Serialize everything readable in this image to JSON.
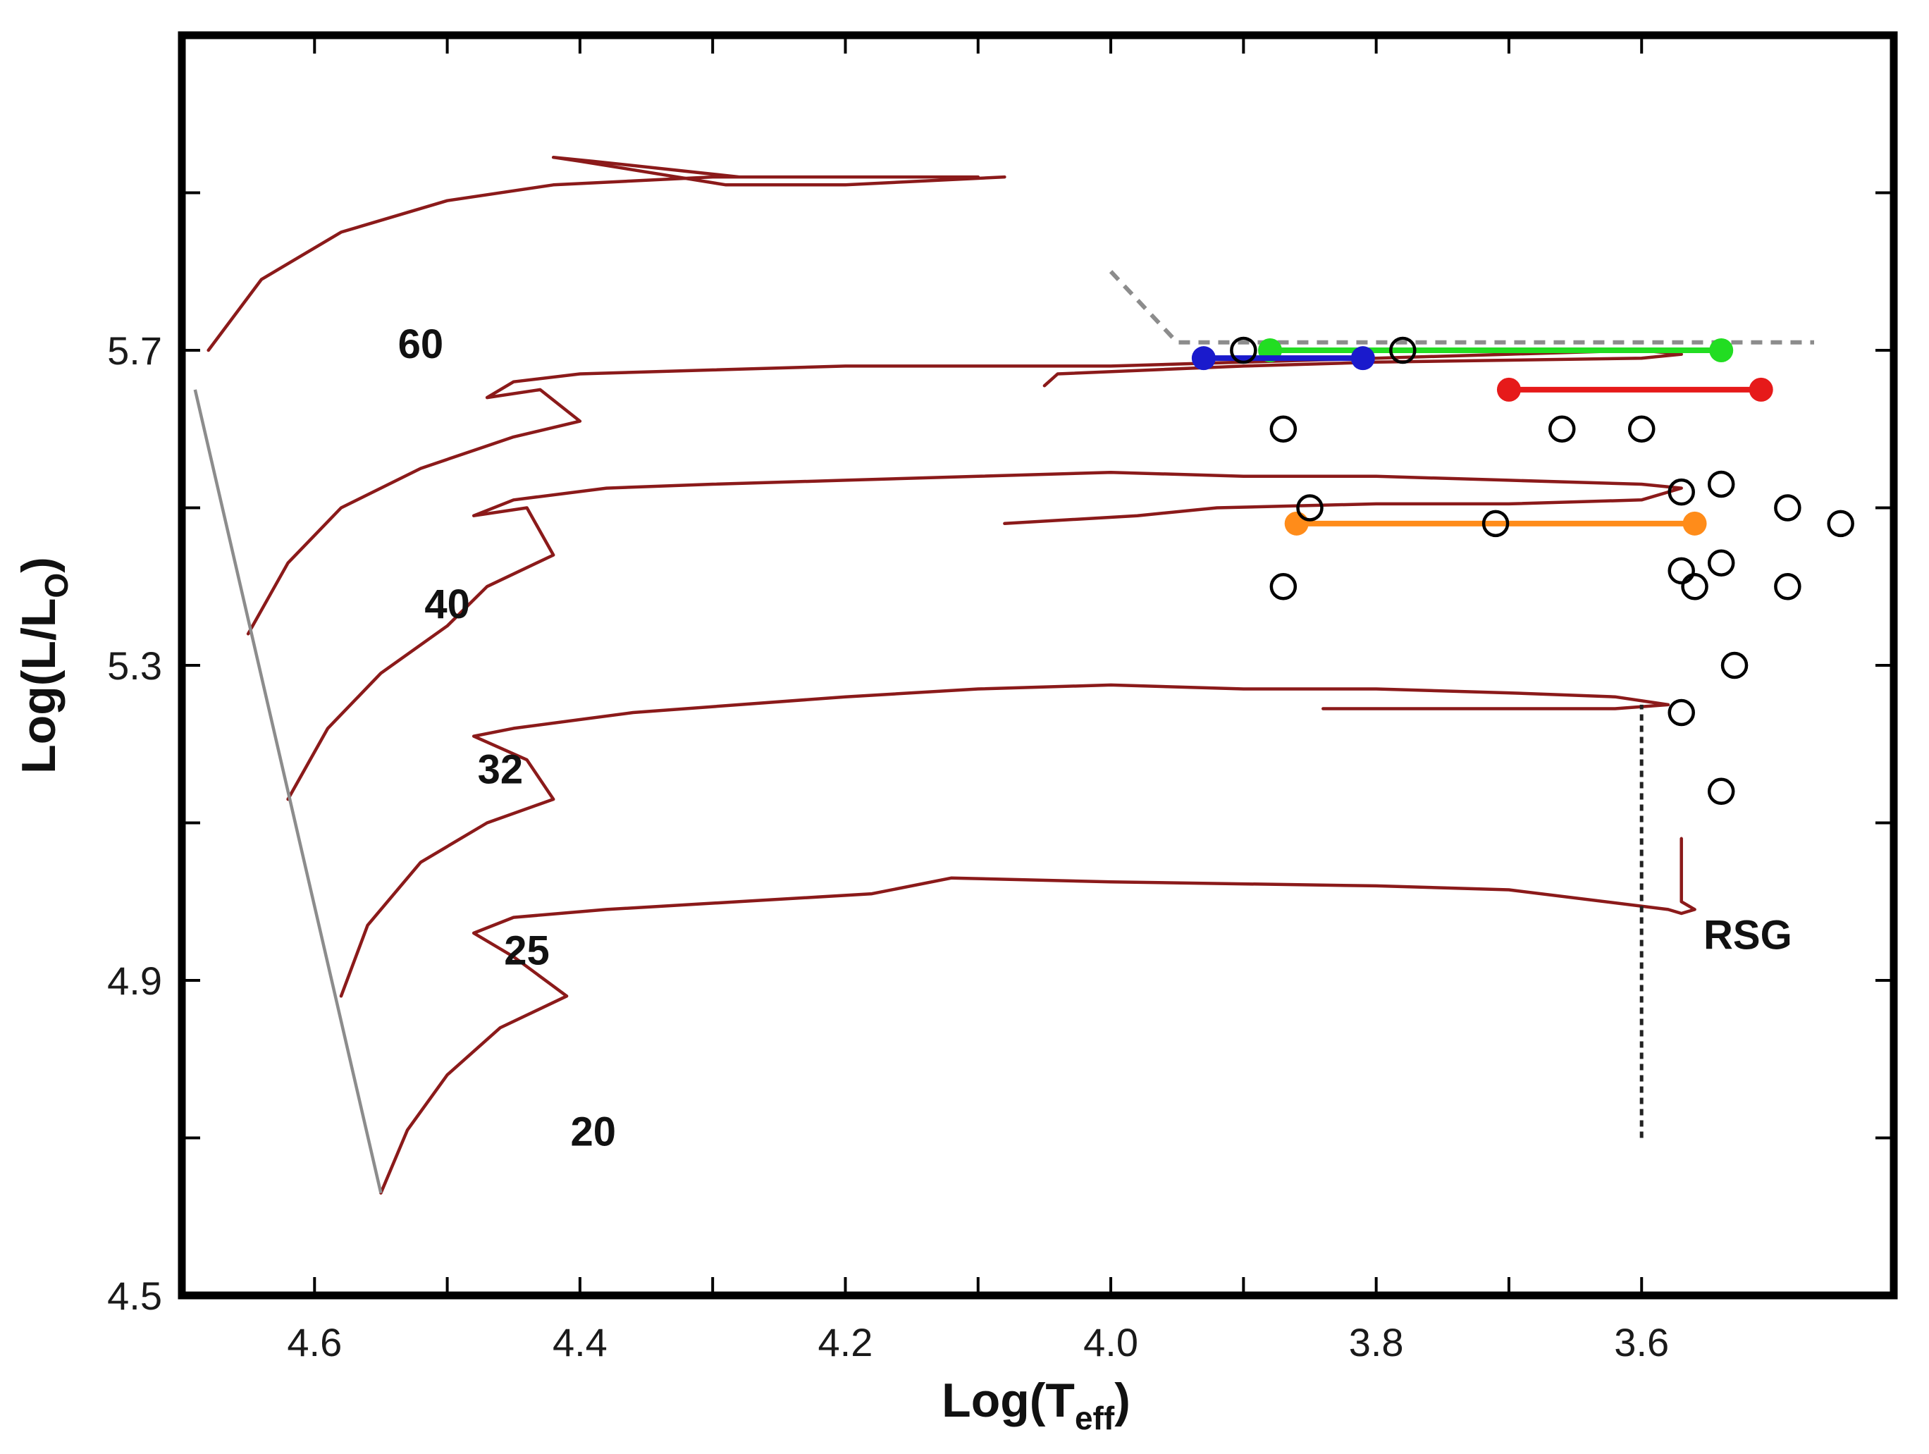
{
  "chart_data": {
    "type": "line",
    "title": "",
    "xlabel": {
      "main": "Log(T",
      "sub": "eff",
      "close": ")"
    },
    "ylabel": {
      "main": "Log(L/L",
      "sub": "O",
      "close": ")"
    },
    "xlim": [
      4.7,
      3.41
    ],
    "ylim": [
      4.5,
      6.1
    ],
    "x_inverted": true,
    "x_ticks": [
      4.6,
      4.4,
      4.2,
      4.0,
      3.8,
      3.6
    ],
    "x_tick_labels": [
      "4.6",
      "4.4",
      "4.2",
      "4.0",
      "3.8",
      "3.6"
    ],
    "x_minor_ticks": [
      4.5,
      4.3,
      4.1,
      3.9,
      3.7
    ],
    "y_ticks": [
      4.5,
      4.9,
      5.3,
      5.7
    ],
    "y_tick_labels": [
      "4.5",
      "4.9",
      "5.3",
      "5.7"
    ],
    "y_minor_ticks": [
      4.7,
      5.1,
      5.5,
      5.9
    ],
    "colors": {
      "track": "#8b1a1a",
      "zams": "#8c8c8c",
      "limit": "#8c8c8c",
      "rsg_line": "#222222",
      "observed": "#000000"
    },
    "tracks": [
      {
        "mass": "60",
        "label_at": [
          4.52,
          5.69
        ],
        "points": [
          [
            4.68,
            5.7
          ],
          [
            4.64,
            5.79
          ],
          [
            4.58,
            5.85
          ],
          [
            4.5,
            5.89
          ],
          [
            4.42,
            5.91
          ],
          [
            4.3,
            5.92
          ],
          [
            4.2,
            5.92
          ],
          [
            4.1,
            5.92
          ],
          [
            4.28,
            5.92
          ],
          [
            4.39,
            5.94
          ],
          [
            4.42,
            5.945
          ],
          [
            4.4,
            5.94
          ],
          [
            4.29,
            5.91
          ],
          [
            4.2,
            5.91
          ],
          [
            4.08,
            5.92
          ]
        ]
      },
      {
        "mass": "40",
        "label_at": [
          4.5,
          5.36
        ],
        "points": [
          [
            4.65,
            5.34
          ],
          [
            4.62,
            5.43
          ],
          [
            4.58,
            5.5
          ],
          [
            4.52,
            5.55
          ],
          [
            4.45,
            5.59
          ],
          [
            4.4,
            5.61
          ],
          [
            4.43,
            5.65
          ],
          [
            4.47,
            5.64
          ],
          [
            4.45,
            5.66
          ],
          [
            4.4,
            5.67
          ],
          [
            4.3,
            5.675
          ],
          [
            4.2,
            5.68
          ],
          [
            4.1,
            5.68
          ],
          [
            4.0,
            5.68
          ],
          [
            3.9,
            5.685
          ],
          [
            3.8,
            5.69
          ],
          [
            3.7,
            5.695
          ],
          [
            3.6,
            5.7
          ],
          [
            3.57,
            5.695
          ],
          [
            3.6,
            5.69
          ],
          [
            3.8,
            5.685
          ],
          [
            3.9,
            5.68
          ],
          [
            4.04,
            5.67
          ],
          [
            4.05,
            5.655
          ]
        ]
      },
      {
        "mass": "32",
        "label_at": [
          4.46,
          5.15
        ],
        "points": [
          [
            4.62,
            5.13
          ],
          [
            4.59,
            5.22
          ],
          [
            4.55,
            5.29
          ],
          [
            4.5,
            5.35
          ],
          [
            4.47,
            5.4
          ],
          [
            4.42,
            5.44
          ],
          [
            4.44,
            5.5
          ],
          [
            4.48,
            5.49
          ],
          [
            4.45,
            5.51
          ],
          [
            4.38,
            5.525
          ],
          [
            4.3,
            5.53
          ],
          [
            4.2,
            5.535
          ],
          [
            4.1,
            5.54
          ],
          [
            4.0,
            5.545
          ],
          [
            3.9,
            5.54
          ],
          [
            3.8,
            5.54
          ],
          [
            3.7,
            5.535
          ],
          [
            3.6,
            5.53
          ],
          [
            3.57,
            5.525
          ],
          [
            3.6,
            5.51
          ],
          [
            3.7,
            5.505
          ],
          [
            3.8,
            5.505
          ],
          [
            3.92,
            5.5
          ],
          [
            3.98,
            5.49
          ],
          [
            4.08,
            5.48
          ]
        ]
      },
      {
        "mass": "25",
        "label_at": [
          4.44,
          4.92
        ],
        "points": [
          [
            4.58,
            4.88
          ],
          [
            4.56,
            4.97
          ],
          [
            4.52,
            5.05
          ],
          [
            4.47,
            5.1
          ],
          [
            4.42,
            5.13
          ],
          [
            4.44,
            5.18
          ],
          [
            4.48,
            5.21
          ],
          [
            4.45,
            5.22
          ],
          [
            4.36,
            5.24
          ],
          [
            4.2,
            5.26
          ],
          [
            4.1,
            5.27
          ],
          [
            4.0,
            5.275
          ],
          [
            3.9,
            5.27
          ],
          [
            3.8,
            5.27
          ],
          [
            3.7,
            5.265
          ],
          [
            3.62,
            5.26
          ],
          [
            3.58,
            5.25
          ],
          [
            3.62,
            5.245
          ],
          [
            3.7,
            5.245
          ],
          [
            3.84,
            5.245
          ]
        ]
      },
      {
        "mass": "20",
        "label_at": [
          4.39,
          4.69
        ],
        "points": [
          [
            4.55,
            4.63
          ],
          [
            4.53,
            4.71
          ],
          [
            4.5,
            4.78
          ],
          [
            4.46,
            4.84
          ],
          [
            4.41,
            4.88
          ],
          [
            4.45,
            4.93
          ],
          [
            4.48,
            4.96
          ],
          [
            4.45,
            4.98
          ],
          [
            4.38,
            4.99
          ],
          [
            4.28,
            5.0
          ],
          [
            4.18,
            5.01
          ],
          [
            4.12,
            5.03
          ],
          [
            4.0,
            5.025
          ],
          [
            3.8,
            5.02
          ],
          [
            3.7,
            5.015
          ],
          [
            3.58,
            4.99
          ],
          [
            3.57,
            4.985
          ],
          [
            3.56,
            4.99
          ],
          [
            3.57,
            5.0
          ],
          [
            3.57,
            5.08
          ]
        ]
      }
    ],
    "zams_line": [
      [
        4.69,
        5.65
      ],
      [
        4.55,
        4.63
      ]
    ],
    "limit_line": [
      [
        4.0,
        5.8
      ],
      [
        3.95,
        5.71
      ],
      [
        3.86,
        5.71
      ],
      [
        3.7,
        5.71
      ],
      [
        3.55,
        5.71
      ],
      [
        3.47,
        5.71
      ]
    ],
    "rsg_dotted_line": [
      [
        3.6,
        4.7
      ],
      [
        3.6,
        5.25
      ]
    ],
    "annotation": {
      "text": "RSG",
      "at": [
        3.52,
        4.94
      ]
    },
    "ranges": [
      {
        "name": "green",
        "color": "#22dd22",
        "x": [
          3.88,
          3.54
        ],
        "y": 5.7
      },
      {
        "name": "blue",
        "color": "#1a1acc",
        "x": [
          3.93,
          3.81
        ],
        "y": 5.69
      },
      {
        "name": "red",
        "color": "#e61a1a",
        "x": [
          3.7,
          3.51
        ],
        "y": 5.65
      },
      {
        "name": "orange",
        "color": "#ff8c1a",
        "x": [
          3.86,
          3.56
        ],
        "y": 5.48
      }
    ],
    "observed_stars": [
      [
        3.9,
        5.7
      ],
      [
        3.78,
        5.7
      ],
      [
        3.87,
        5.6
      ],
      [
        3.66,
        5.6
      ],
      [
        3.6,
        5.6
      ],
      [
        3.85,
        5.5
      ],
      [
        3.57,
        5.52
      ],
      [
        3.54,
        5.53
      ],
      [
        3.49,
        5.5
      ],
      [
        3.45,
        5.48
      ],
      [
        3.71,
        5.48
      ],
      [
        3.87,
        5.4
      ],
      [
        3.57,
        5.42
      ],
      [
        3.56,
        5.4
      ],
      [
        3.54,
        5.43
      ],
      [
        3.49,
        5.4
      ],
      [
        3.53,
        5.3
      ],
      [
        3.57,
        5.24
      ],
      [
        3.54,
        5.14
      ]
    ]
  }
}
